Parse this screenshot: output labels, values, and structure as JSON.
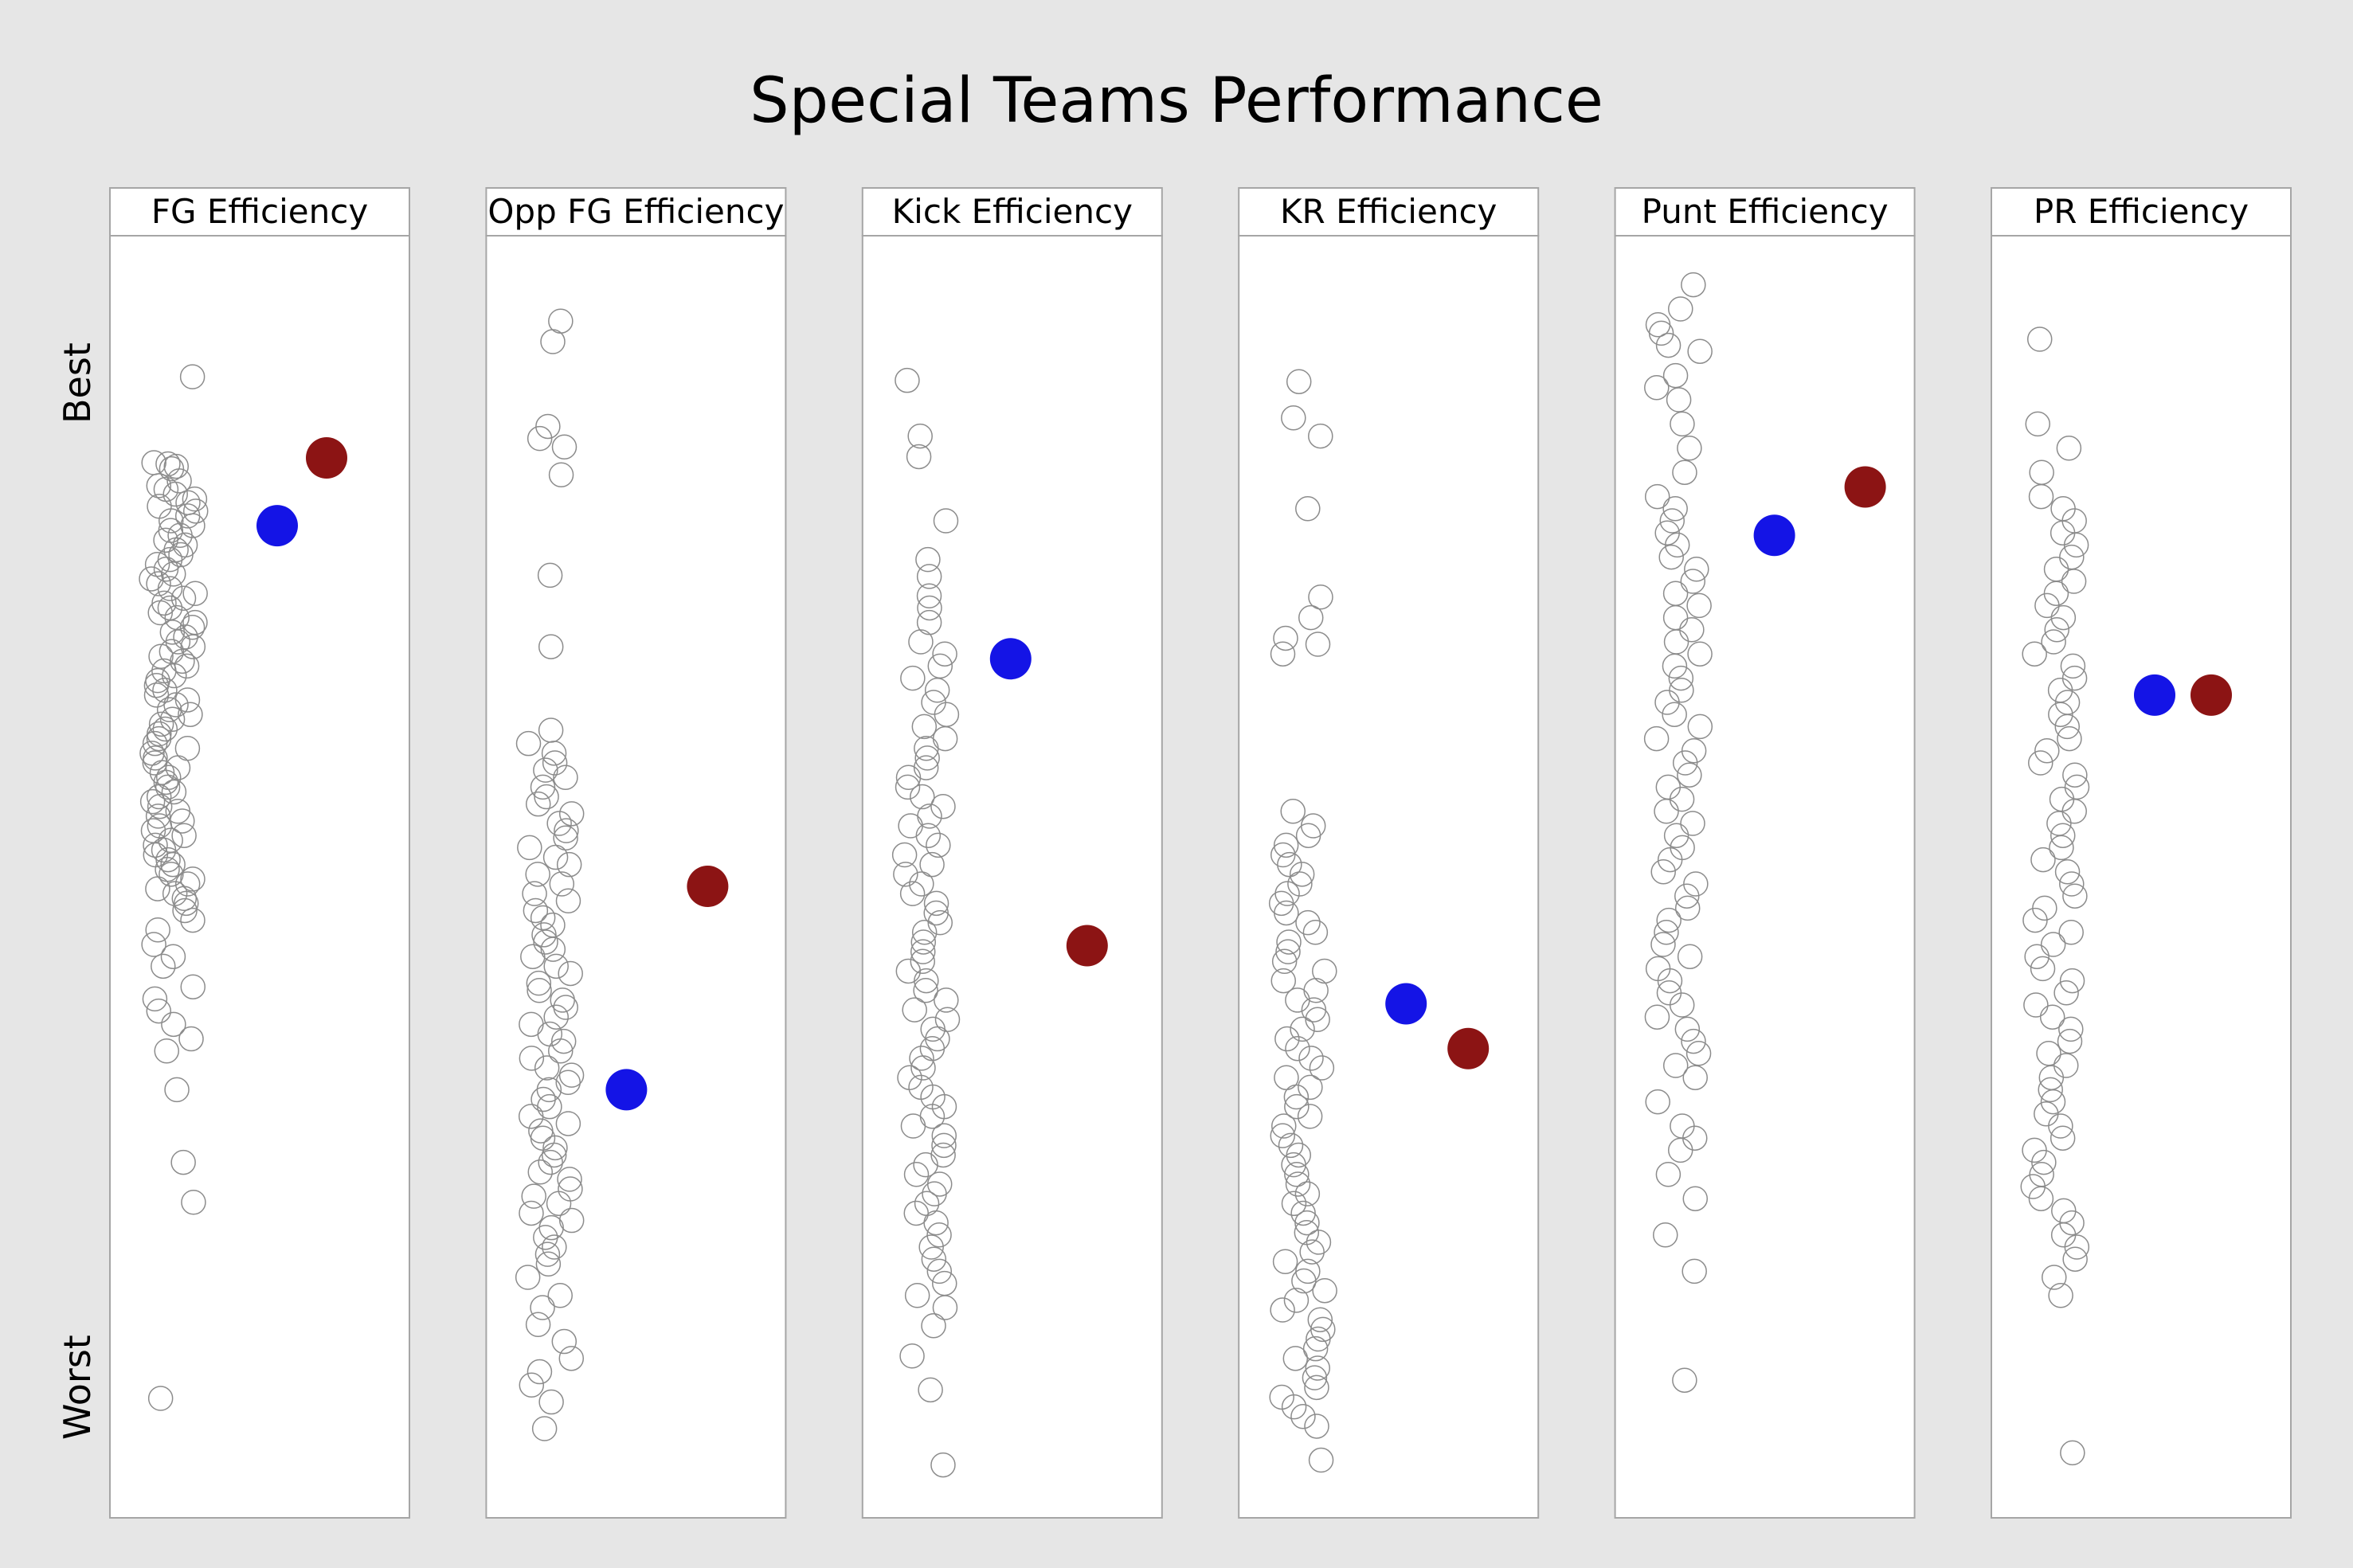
{
  "title": "Special Teams Performance",
  "ylabels": {
    "best": "Best",
    "worst": "Worst"
  },
  "colors": {
    "background": "#e6e6e6",
    "panel": "#ffffff",
    "panel_border": "#a6a6a6",
    "open_marker": "#8c8c8c",
    "series_blue": "#1414e6",
    "series_red": "#8c1414"
  },
  "chart_data": {
    "type": "scatter",
    "note_scale": "Vertical position is a performance rank scale from Best (top) to Worst (bottom); unlabeled numeric axis, values recorded as 0 (worst) to 1 (best).",
    "ylim": [
      0,
      1
    ],
    "panels": [
      {
        "name": "FG Efficiency",
        "league": [
          0.919,
          0.848,
          0.845,
          0.847,
          0.843,
          0.833,
          0.829,
          0.826,
          0.822,
          0.818,
          0.815,
          0.812,
          0.808,
          0.804,
          0.8,
          0.796,
          0.792,
          0.788,
          0.784,
          0.78,
          0.776,
          0.772,
          0.768,
          0.764,
          0.76,
          0.756,
          0.752,
          0.748,
          0.744,
          0.74,
          0.736,
          0.732,
          0.728,
          0.724,
          0.72,
          0.716,
          0.712,
          0.708,
          0.704,
          0.7,
          0.696,
          0.692,
          0.688,
          0.684,
          0.68,
          0.676,
          0.672,
          0.668,
          0.664,
          0.66,
          0.656,
          0.652,
          0.648,
          0.644,
          0.64,
          0.636,
          0.632,
          0.628,
          0.624,
          0.62,
          0.616,
          0.612,
          0.608,
          0.604,
          0.6,
          0.596,
          0.592,
          0.588,
          0.584,
          0.58,
          0.576,
          0.572,
          0.568,
          0.564,
          0.56,
          0.556,
          0.552,
          0.548,
          0.544,
          0.54,
          0.536,
          0.532,
          0.528,
          0.524,
          0.52,
          0.516,
          0.512,
          0.508,
          0.504,
          0.5,
          0.496,
          0.492,
          0.488,
          0.484,
          0.478,
          0.47,
          0.462,
          0.45,
          0.44,
          0.432,
          0.415,
          0.405,
          0.395,
          0.384,
          0.372,
          0.362,
          0.33,
          0.27,
          0.237,
          0.075
        ],
        "blue": 0.796,
        "red": 0.852
      },
      {
        "name": "Opp FG Efficiency",
        "league": [
          0.965,
          0.948,
          0.878,
          0.868,
          0.861,
          0.838,
          0.755,
          0.696,
          0.627,
          0.616,
          0.608,
          0.6,
          0.594,
          0.588,
          0.58,
          0.572,
          0.566,
          0.558,
          0.55,
          0.544,
          0.538,
          0.53,
          0.522,
          0.516,
          0.508,
          0.5,
          0.492,
          0.486,
          0.478,
          0.472,
          0.466,
          0.458,
          0.452,
          0.446,
          0.44,
          0.432,
          0.426,
          0.418,
          0.412,
          0.404,
          0.398,
          0.39,
          0.384,
          0.376,
          0.37,
          0.362,
          0.356,
          0.348,
          0.342,
          0.336,
          0.33,
          0.322,
          0.316,
          0.308,
          0.302,
          0.296,
          0.29,
          0.282,
          0.276,
          0.27,
          0.262,
          0.256,
          0.248,
          0.242,
          0.236,
          0.228,
          0.222,
          0.216,
          0.208,
          0.2,
          0.194,
          0.186,
          0.175,
          0.16,
          0.15,
          0.136,
          0.122,
          0.108,
          0.097,
          0.086,
          0.072,
          0.05
        ],
        "blue": 0.33,
        "red": 0.498
      },
      {
        "name": "Kick Efficiency",
        "league": [
          0.916,
          0.87,
          0.853,
          0.8,
          0.768,
          0.754,
          0.738,
          0.728,
          0.716,
          0.7,
          0.69,
          0.68,
          0.67,
          0.66,
          0.65,
          0.64,
          0.63,
          0.62,
          0.612,
          0.604,
          0.596,
          0.588,
          0.58,
          0.572,
          0.564,
          0.556,
          0.548,
          0.54,
          0.532,
          0.524,
          0.516,
          0.508,
          0.5,
          0.492,
          0.484,
          0.476,
          0.468,
          0.46,
          0.452,
          0.444,
          0.436,
          0.428,
          0.42,
          0.412,
          0.404,
          0.396,
          0.388,
          0.38,
          0.372,
          0.364,
          0.356,
          0.348,
          0.34,
          0.332,
          0.324,
          0.316,
          0.308,
          0.3,
          0.292,
          0.284,
          0.276,
          0.268,
          0.26,
          0.252,
          0.244,
          0.236,
          0.228,
          0.22,
          0.21,
          0.2,
          0.19,
          0.18,
          0.17,
          0.16,
          0.15,
          0.135,
          0.11,
          0.082,
          0.02
        ],
        "blue": 0.686,
        "red": 0.449
      },
      {
        "name": "KR Efficiency",
        "league": [
          0.915,
          0.885,
          0.87,
          0.81,
          0.737,
          0.72,
          0.703,
          0.698,
          0.69,
          0.56,
          0.548,
          0.54,
          0.532,
          0.524,
          0.516,
          0.508,
          0.5,
          0.492,
          0.484,
          0.476,
          0.468,
          0.46,
          0.452,
          0.444,
          0.436,
          0.428,
          0.42,
          0.412,
          0.404,
          0.396,
          0.388,
          0.38,
          0.372,
          0.364,
          0.356,
          0.348,
          0.34,
          0.332,
          0.324,
          0.316,
          0.308,
          0.3,
          0.292,
          0.284,
          0.276,
          0.268,
          0.26,
          0.252,
          0.244,
          0.236,
          0.228,
          0.22,
          0.212,
          0.204,
          0.196,
          0.188,
          0.18,
          0.172,
          0.164,
          0.156,
          0.148,
          0.14,
          0.132,
          0.124,
          0.116,
          0.108,
          0.1,
          0.092,
          0.084,
          0.076,
          0.068,
          0.06,
          0.052,
          0.024
        ],
        "blue": 0.401,
        "red": 0.364
      },
      {
        "name": "Punt Efficiency",
        "league": [
          0.995,
          0.975,
          0.962,
          0.955,
          0.945,
          0.94,
          0.92,
          0.91,
          0.9,
          0.88,
          0.86,
          0.84,
          0.82,
          0.81,
          0.8,
          0.79,
          0.78,
          0.77,
          0.76,
          0.75,
          0.74,
          0.73,
          0.72,
          0.71,
          0.7,
          0.69,
          0.68,
          0.67,
          0.66,
          0.65,
          0.64,
          0.63,
          0.62,
          0.61,
          0.6,
          0.59,
          0.58,
          0.57,
          0.56,
          0.55,
          0.54,
          0.53,
          0.52,
          0.51,
          0.5,
          0.49,
          0.48,
          0.47,
          0.46,
          0.45,
          0.44,
          0.43,
          0.42,
          0.41,
          0.4,
          0.39,
          0.38,
          0.37,
          0.36,
          0.35,
          0.34,
          0.32,
          0.3,
          0.29,
          0.28,
          0.26,
          0.24,
          0.21,
          0.18,
          0.09
        ],
        "blue": 0.788,
        "red": 0.828
      },
      {
        "name": "PR Efficiency",
        "league": [
          0.95,
          0.88,
          0.86,
          0.84,
          0.82,
          0.81,
          0.8,
          0.79,
          0.78,
          0.77,
          0.76,
          0.75,
          0.74,
          0.73,
          0.72,
          0.71,
          0.7,
          0.69,
          0.68,
          0.67,
          0.66,
          0.65,
          0.64,
          0.63,
          0.62,
          0.61,
          0.6,
          0.59,
          0.58,
          0.57,
          0.56,
          0.55,
          0.54,
          0.53,
          0.52,
          0.51,
          0.5,
          0.49,
          0.48,
          0.47,
          0.46,
          0.45,
          0.44,
          0.43,
          0.42,
          0.41,
          0.4,
          0.39,
          0.38,
          0.37,
          0.36,
          0.35,
          0.34,
          0.33,
          0.32,
          0.31,
          0.3,
          0.29,
          0.28,
          0.27,
          0.26,
          0.25,
          0.24,
          0.23,
          0.22,
          0.21,
          0.2,
          0.19,
          0.175,
          0.16,
          0.03
        ],
        "blue": 0.656,
        "red": 0.656
      }
    ]
  }
}
